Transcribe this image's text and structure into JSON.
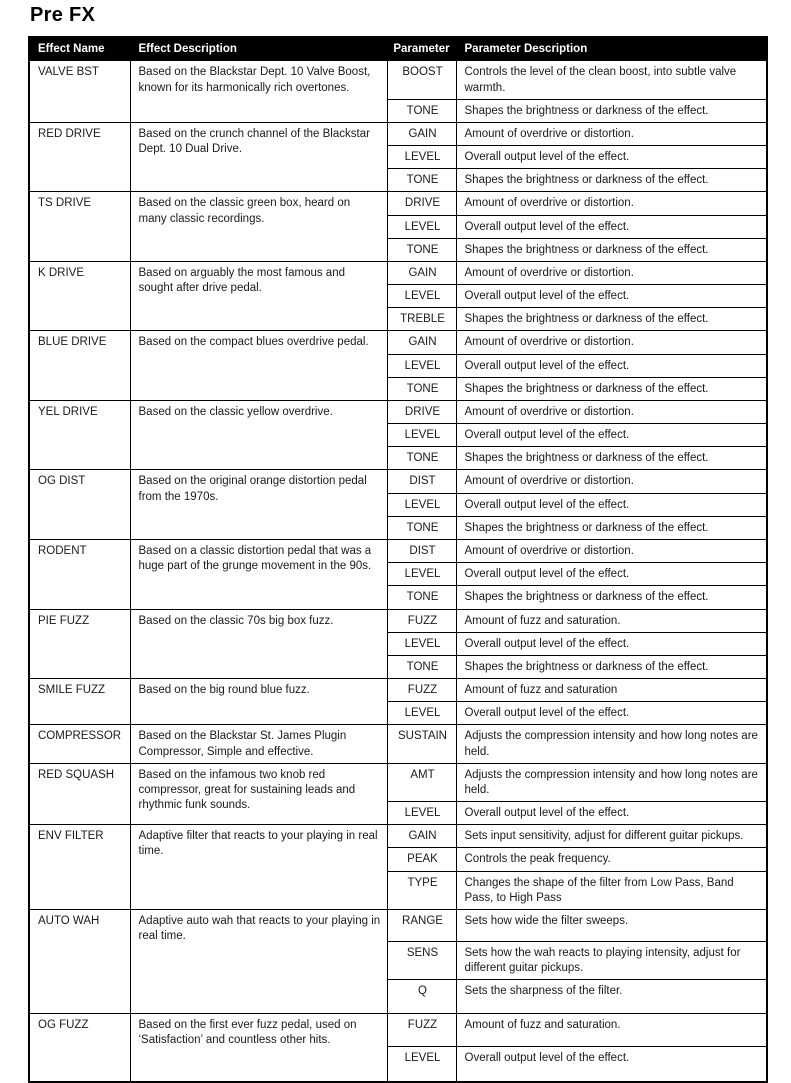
{
  "page_title": "Pre FX",
  "colors": {
    "header_bg": "#000000",
    "header_text": "#ffffff",
    "border": "#000000",
    "body_text": "#1a1a1a",
    "page_bg": "#ffffff"
  },
  "table": {
    "headers": [
      "Effect Name",
      "Effect Description",
      "Parameter",
      "Parameter Description"
    ],
    "effects": [
      {
        "name": "VALVE BST",
        "description": "Based on the Blackstar Dept. 10 Valve Boost, known for its harmonically rich overtones.",
        "parameters": [
          {
            "name": "BOOST",
            "description": "Controls the level of the clean boost, into subtle valve warmth."
          },
          {
            "name": "TONE",
            "description": "Shapes the brightness or darkness of the effect."
          }
        ]
      },
      {
        "name": "RED DRIVE",
        "description": "Based on the crunch channel of the Blackstar Dept. 10 Dual Drive.",
        "parameters": [
          {
            "name": "GAIN",
            "description": "Amount of overdrive or distortion."
          },
          {
            "name": "LEVEL",
            "description": "Overall output level of the effect."
          },
          {
            "name": "TONE",
            "description": "Shapes the brightness or darkness of the effect."
          }
        ]
      },
      {
        "name": "TS DRIVE",
        "description": "Based on the classic green box, heard on many classic recordings.",
        "parameters": [
          {
            "name": "DRIVE",
            "description": "Amount of overdrive or distortion."
          },
          {
            "name": "LEVEL",
            "description": "Overall output level of the effect."
          },
          {
            "name": "TONE",
            "description": "Shapes the brightness or darkness of the effect."
          }
        ]
      },
      {
        "name": "K DRIVE",
        "description": "Based on arguably the most famous and sought after drive pedal.",
        "parameters": [
          {
            "name": "GAIN",
            "description": "Amount of overdrive or distortion."
          },
          {
            "name": "LEVEL",
            "description": "Overall output level of the effect."
          },
          {
            "name": "TREBLE",
            "description": "Shapes the brightness or darkness of the effect."
          }
        ]
      },
      {
        "name": "BLUE DRIVE",
        "description": "Based on the compact blues overdrive pedal.",
        "parameters": [
          {
            "name": "GAIN",
            "description": "Amount of overdrive or distortion."
          },
          {
            "name": "LEVEL",
            "description": "Overall output level of the effect."
          },
          {
            "name": "TONE",
            "description": "Shapes the brightness or darkness of the effect."
          }
        ]
      },
      {
        "name": "YEL DRIVE",
        "description": "Based on the classic yellow overdrive.",
        "parameters": [
          {
            "name": "DRIVE",
            "description": "Amount of overdrive or distortion."
          },
          {
            "name": "LEVEL",
            "description": "Overall output level of the effect."
          },
          {
            "name": "TONE",
            "description": "Shapes the brightness or darkness of the effect."
          }
        ]
      },
      {
        "name": "OG DIST",
        "description": "Based on the original orange distortion pedal from the 1970s.",
        "parameters": [
          {
            "name": "DIST",
            "description": "Amount of overdrive or distortion."
          },
          {
            "name": "LEVEL",
            "description": "Overall output level of the effect."
          },
          {
            "name": "TONE",
            "description": "Shapes the brightness or darkness of the effect."
          }
        ]
      },
      {
        "name": "RODENT",
        "description": "Based on a classic distortion pedal that was a huge part of the grunge movement in the 90s.",
        "parameters": [
          {
            "name": "DIST",
            "description": "Amount of overdrive or distortion."
          },
          {
            "name": "LEVEL",
            "description": "Overall output level of the effect."
          },
          {
            "name": "TONE",
            "description": "Shapes the brightness or darkness of the effect."
          }
        ]
      },
      {
        "name": "PIE FUZZ",
        "description": "Based on the classic 70s big box fuzz.",
        "parameters": [
          {
            "name": "FUZZ",
            "description": "Amount of fuzz and saturation."
          },
          {
            "name": "LEVEL",
            "description": "Overall output level of the effect."
          },
          {
            "name": "TONE",
            "description": "Shapes the brightness or darkness of the effect."
          }
        ]
      },
      {
        "name": "SMILE FUZZ",
        "description": "Based on the big round blue fuzz.",
        "parameters": [
          {
            "name": "FUZZ",
            "description": "Amount of fuzz and saturation"
          },
          {
            "name": "LEVEL",
            "description": "Overall output level of the effect."
          }
        ]
      },
      {
        "name": "COMPRESSOR",
        "description": "Based on the Blackstar St. James Plugin Compressor, Simple and effective.",
        "parameters": [
          {
            "name": "SUSTAIN",
            "description": "Adjusts the compression intensity and how long notes are held."
          }
        ]
      },
      {
        "name": "RED SQUASH",
        "description": "Based on the infamous two knob red compressor, great for sustaining leads and rhythmic funk sounds.",
        "parameters": [
          {
            "name": "AMT",
            "description": "Adjusts the compression intensity and how long notes are held."
          },
          {
            "name": "LEVEL",
            "description": "Overall output level of the effect."
          }
        ]
      },
      {
        "name": "ENV FILTER",
        "description": "Adaptive filter that reacts to your playing in real time.",
        "parameters": [
          {
            "name": "GAIN",
            "description": "Sets input sensitivity, adjust for different guitar pickups."
          },
          {
            "name": "PEAK",
            "description": "Controls the peak frequency."
          },
          {
            "name": "TYPE",
            "description": "Changes the shape of the filter from Low Pass, Band Pass, to High Pass"
          }
        ]
      },
      {
        "name": "AUTO WAH",
        "description": "Adaptive auto wah that reacts to your playing in real time.",
        "parameters": [
          {
            "name": "RANGE",
            "description": "Sets how wide the filter sweeps."
          },
          {
            "name": "SENS",
            "description": "Sets how the wah reacts to playing intensity, adjust for different guitar pickups."
          },
          {
            "name": "Q",
            "description": "Sets the sharpness of the filter."
          }
        ]
      },
      {
        "name": "OG FUZZ",
        "description": "Based on the first ever fuzz pedal, used on ‘Satisfaction’ and countless other hits.",
        "parameters": [
          {
            "name": "FUZZ",
            "description": "Amount of fuzz and saturation."
          },
          {
            "name": "LEVEL",
            "description": "Overall output level of the effect."
          }
        ]
      }
    ]
  }
}
